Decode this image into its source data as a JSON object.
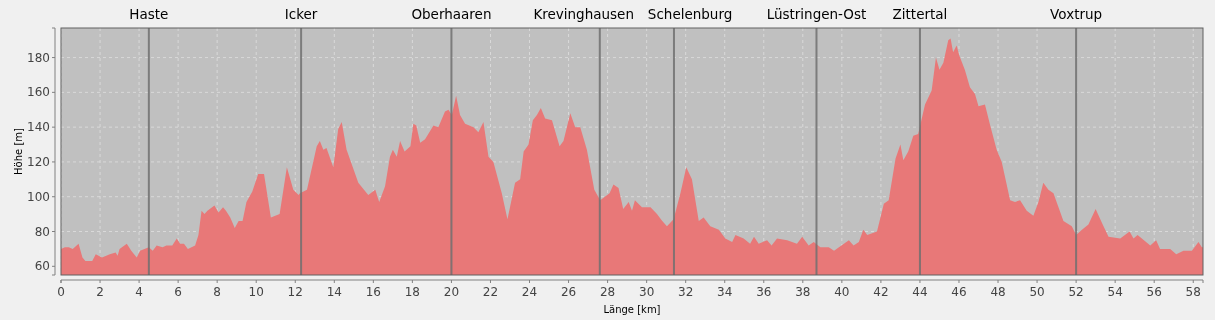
{
  "chart_data": {
    "type": "area",
    "xlabel": "Länge [km]",
    "ylabel": "Höhe [m]",
    "xlim": [
      0,
      58.5
    ],
    "ylim": [
      55,
      197
    ],
    "xticks": [
      0,
      2,
      4,
      6,
      8,
      10,
      12,
      14,
      16,
      18,
      20,
      22,
      24,
      26,
      28,
      30,
      32,
      34,
      36,
      38,
      40,
      42,
      44,
      46,
      48,
      50,
      52,
      54,
      56,
      58
    ],
    "yticks": [
      60,
      80,
      100,
      120,
      140,
      160,
      180
    ],
    "grid": true,
    "series": [
      {
        "color": "#e87878",
        "x": [
          0,
          0.2,
          0.4,
          0.6,
          0.8,
          0.9,
          1.1,
          1.25,
          1.6,
          1.78,
          2.1,
          2.5,
          2.8,
          2.9,
          3.0,
          3.37,
          3.6,
          3.88,
          4.05,
          4.5,
          4.7,
          4.9,
          5.2,
          5.4,
          5.7,
          5.93,
          6.1,
          6.3,
          6.5,
          6.87,
          7.04,
          7.2,
          7.35,
          7.5,
          7.86,
          8.07,
          8.3,
          8.45,
          8.67,
          8.9,
          9.1,
          9.3,
          9.5,
          9.8,
          10.1,
          10.4,
          10.75,
          11.2,
          11.57,
          11.9,
          12.17,
          12.24,
          12.6,
          13.1,
          13.26,
          13.44,
          13.6,
          13.95,
          14.2,
          14.38,
          14.63,
          15.23,
          15.74,
          16.1,
          16.3,
          16.6,
          16.85,
          17.0,
          17.2,
          17.37,
          17.6,
          17.9,
          18.05,
          18.2,
          18.4,
          18.65,
          19.08,
          19.33,
          19.67,
          19.85,
          20.02,
          20.24,
          20.44,
          20.7,
          21.13,
          21.38,
          21.64,
          21.9,
          22.15,
          22.58,
          22.87,
          23.26,
          23.52,
          23.7,
          23.95,
          24.17,
          24.38,
          24.58,
          24.8,
          25.15,
          25.54,
          25.74,
          26.09,
          26.34,
          26.6,
          26.94,
          27.32,
          27.62,
          28.1,
          28.3,
          28.56,
          28.8,
          29.08,
          29.25,
          29.4,
          29.76,
          30.2,
          30.53,
          30.8,
          31.04,
          31.38,
          31.73,
          32.03,
          32.32,
          32.67,
          32.92,
          33.26,
          33.7,
          34.03,
          34.38,
          34.55,
          34.97,
          35.3,
          35.5,
          35.74,
          36.17,
          36.4,
          36.68,
          37.2,
          37.7,
          37.97,
          38.3,
          38.56,
          38.9,
          39.33,
          39.6,
          39.85,
          40.36,
          40.6,
          40.87,
          41.1,
          41.3,
          41.8,
          42.15,
          42.4,
          42.75,
          43.0,
          43.15,
          43.4,
          43.66,
          43.91,
          44.26,
          44.6,
          44.82,
          45.0,
          45.2,
          45.45,
          45.57,
          45.7,
          45.88,
          46.02,
          46.3,
          46.56,
          46.82,
          47.0,
          47.33,
          47.6,
          47.93,
          48.19,
          48.62,
          48.87,
          49.13,
          49.47,
          49.81,
          50.07,
          50.32,
          50.58,
          50.84,
          51.35,
          51.78,
          52.0,
          52.3,
          52.63,
          53.0,
          53.32,
          53.66,
          54.26,
          54.74,
          54.94,
          55.15,
          55.8,
          56.1,
          56.3,
          56.82,
          57.13,
          57.5,
          57.93,
          58.27,
          58.44,
          58.5
        ],
        "values": [
          70,
          71,
          71,
          70,
          72,
          73,
          65,
          63,
          63,
          67,
          65,
          67,
          68,
          66,
          70,
          73,
          69,
          65,
          69,
          71,
          69,
          72,
          71,
          72,
          72,
          76,
          73,
          73,
          70,
          72,
          78,
          92,
          90,
          92,
          95,
          91,
          94,
          92,
          88,
          82,
          86,
          86,
          97,
          103,
          113,
          113,
          88,
          90,
          117,
          104,
          101,
          102,
          104,
          129,
          132,
          127,
          128,
          117,
          139,
          143,
          127,
          108,
          101,
          104,
          97,
          106,
          123,
          127,
          123,
          132,
          126,
          129,
          142,
          141,
          131,
          133,
          141,
          140,
          149,
          150,
          147,
          158,
          147,
          142,
          140,
          137,
          143,
          123,
          120,
          102,
          87,
          108,
          110,
          126,
          130,
          144,
          147,
          151,
          145,
          144,
          129,
          132,
          148,
          140,
          140,
          127,
          104,
          98,
          102,
          107,
          105,
          93,
          97,
          92,
          98,
          94,
          94,
          90,
          86,
          83,
          87,
          102,
          117,
          110,
          86,
          88,
          83,
          81,
          76,
          74,
          78,
          76,
          73,
          77,
          73,
          75,
          72,
          76,
          75,
          73,
          77,
          72,
          74,
          71,
          71,
          69,
          71,
          75,
          72,
          74,
          81,
          78,
          80,
          96,
          98,
          122,
          130,
          121,
          126,
          135,
          136,
          153,
          161,
          180,
          173,
          177,
          190,
          191,
          183,
          187,
          181,
          173,
          163,
          159,
          152,
          153,
          141,
          127,
          120,
          98,
          97,
          98,
          92,
          89,
          97,
          108,
          104,
          102,
          86,
          83,
          78,
          81,
          84,
          93,
          85,
          77,
          76,
          80,
          76,
          78,
          72,
          75,
          70,
          70,
          67,
          69,
          69,
          74,
          71,
          71
        ]
      }
    ],
    "ref_lines": [
      {
        "axis": "x",
        "value": 4.5,
        "label": "Haste",
        "color": "#707070"
      },
      {
        "axis": "x",
        "value": 12.3,
        "label": "Icker",
        "color": "#707070"
      },
      {
        "axis": "x",
        "value": 20,
        "label": "Oberhaaren",
        "color": "#707070"
      },
      {
        "axis": "x",
        "value": 27.6,
        "label": "Krevinghausen",
        "color": "#707070"
      },
      {
        "axis": "x",
        "value": 31.4,
        "label": "Schelenburg",
        "color": "#707070"
      },
      {
        "axis": "x",
        "value": 38.7,
        "label": "Lüstringen-Ost",
        "color": "#707070"
      },
      {
        "axis": "x",
        "value": 44,
        "label": "Zittertal",
        "color": "#707070"
      },
      {
        "axis": "x",
        "value": 52,
        "label": "Voxtrup",
        "color": "#707070"
      }
    ]
  }
}
